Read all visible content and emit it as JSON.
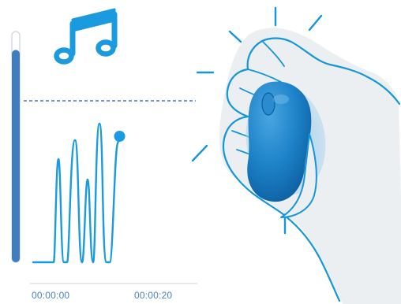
{
  "theme": {
    "accent": "#1A9BE0",
    "level_bar": "#3F7DC1",
    "level_track": "#D5DCE3",
    "threshold": "#4678BC",
    "axis": "#D7DEE5",
    "timestamp_text": "#4A83C4",
    "hand_outline": "#1596D8",
    "hand_shading": "#ECEFF2",
    "device_body": "#1272B8",
    "device_highlight": "#4AA6E2",
    "device_glow": "#8FC4E9"
  },
  "icons": {
    "music": "music-note-icon"
  },
  "level_meter": {
    "fill_fraction": 0.92
  },
  "timeline": {
    "start": "00:00:00",
    "end": "00:00:20"
  }
}
